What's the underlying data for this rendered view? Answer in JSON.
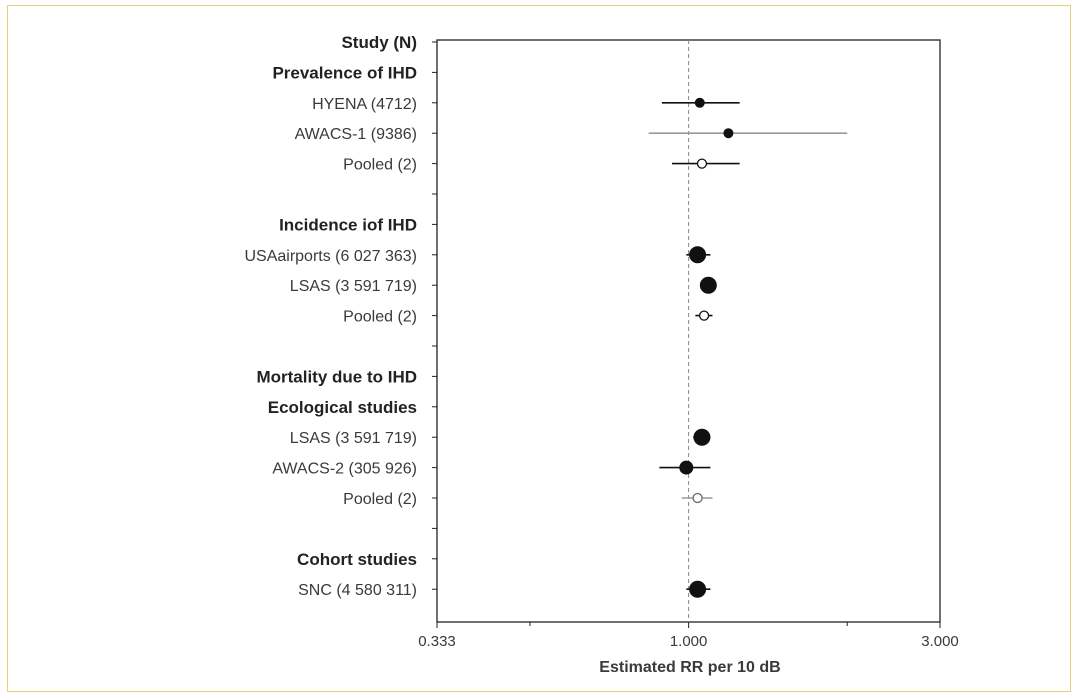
{
  "colors": {
    "frame": "#e8cf7a",
    "axis": "#222222",
    "mark": "#111111",
    "gray_ci": "#9a9a9a",
    "reference_line": "#888888",
    "text": "#3a3a3a"
  },
  "chart_data": {
    "type": "forest",
    "title": "",
    "xlabel": "Estimated RR per 10 dB",
    "ylabel": "",
    "x_scale": "log",
    "xlim": [
      0.333,
      3.0
    ],
    "xticks": [
      "0.333",
      "1.000",
      "3.000"
    ],
    "x_minor_ticks": [
      0.5,
      2.0
    ],
    "reference_value": 1.0,
    "header": "Study (N)",
    "rows": [
      {
        "label": "Prevalence of IHD",
        "kind": "heading",
        "row": 1
      },
      {
        "label": "HYENA (4712)",
        "kind": "study",
        "row": 2,
        "rr": 1.05,
        "lo": 0.89,
        "hi": 1.25,
        "marker": "small",
        "ci_color": "black"
      },
      {
        "label": "AWACS-1 (9386)",
        "kind": "study",
        "row": 3,
        "rr": 1.19,
        "lo": 0.84,
        "hi": 2.0,
        "marker": "small",
        "ci_color": "gray"
      },
      {
        "label": "Pooled (2)",
        "kind": "pooled",
        "row": 4,
        "rr": 1.06,
        "lo": 0.93,
        "hi": 1.25,
        "marker": "open",
        "ci_color": "black"
      },
      {
        "label": "Incidence iof IHD",
        "kind": "heading",
        "row": 6
      },
      {
        "label": "USAairports (6 027 363)",
        "kind": "study",
        "row": 7,
        "rr": 1.04,
        "lo": 0.99,
        "hi": 1.1,
        "marker": "large",
        "ci_color": "black"
      },
      {
        "label": "LSAS (3 591 719)",
        "kind": "study",
        "row": 8,
        "rr": 1.09,
        "lo": 1.07,
        "hi": 1.12,
        "marker": "large",
        "ci_color": "black"
      },
      {
        "label": "Pooled (2)",
        "kind": "pooled",
        "row": 9,
        "rr": 1.07,
        "lo": 1.03,
        "hi": 1.11,
        "marker": "open",
        "ci_color": "black"
      },
      {
        "label": "Mortality due to IHD",
        "kind": "heading",
        "row": 11
      },
      {
        "label": "Ecological studies",
        "kind": "heading",
        "row": 12
      },
      {
        "label": "LSAS (3 591 719)",
        "kind": "study",
        "row": 13,
        "rr": 1.06,
        "lo": 1.02,
        "hi": 1.1,
        "marker": "large",
        "ci_color": "black"
      },
      {
        "label": "AWACS-2 (305 926)",
        "kind": "study",
        "row": 14,
        "rr": 0.99,
        "lo": 0.88,
        "hi": 1.1,
        "marker": "medium",
        "ci_color": "black"
      },
      {
        "label": "Pooled (2)",
        "kind": "pooled",
        "row": 15,
        "rr": 1.04,
        "lo": 0.97,
        "hi": 1.11,
        "marker": "open",
        "ci_color": "gray"
      },
      {
        "label": "Cohort studies",
        "kind": "heading",
        "row": 17
      },
      {
        "label": "SNC (4 580 311)",
        "kind": "study",
        "row": 18,
        "rr": 1.04,
        "lo": 0.99,
        "hi": 1.1,
        "marker": "large",
        "ci_color": "black"
      }
    ]
  }
}
